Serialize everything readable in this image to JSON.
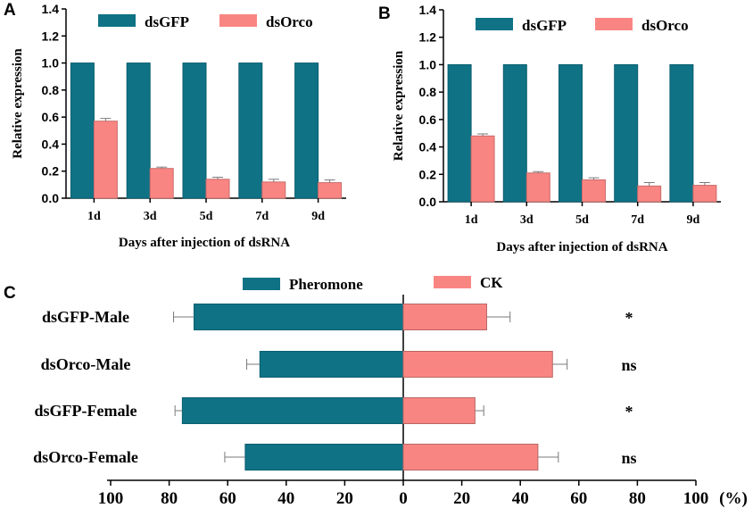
{
  "colors": {
    "teal": "#0f7285",
    "salmon": "#f98583",
    "axis": "#000000",
    "error": "#7a7a7a"
  },
  "chart_data": [
    {
      "panel": "A",
      "type": "bar",
      "categories": [
        "1d",
        "3d",
        "5d",
        "7d",
        "9d"
      ],
      "series": [
        {
          "name": "dsGFP",
          "values": [
            1.0,
            1.0,
            1.0,
            1.0,
            1.0
          ],
          "errors": [
            0,
            0,
            0,
            0,
            0
          ]
        },
        {
          "name": "dsOrco",
          "values": [
            0.57,
            0.22,
            0.14,
            0.12,
            0.115
          ],
          "errors": [
            0.02,
            0.01,
            0.015,
            0.02,
            0.02
          ]
        }
      ],
      "ylabel": "Relative expression",
      "xlabel": "Days after injection of dsRNA",
      "ylim": [
        0,
        1.4
      ],
      "yticks": [
        "0.0",
        "0.2",
        "0.4",
        "0.6",
        "0.8",
        "1.0",
        "1.2",
        "1.4"
      ],
      "legend": "top"
    },
    {
      "panel": "B",
      "type": "bar",
      "categories": [
        "1d",
        "3d",
        "5d",
        "7d",
        "9d"
      ],
      "series": [
        {
          "name": "dsGFP",
          "values": [
            1.0,
            1.0,
            1.0,
            1.0,
            1.0
          ],
          "errors": [
            0,
            0,
            0,
            0,
            0
          ]
        },
        {
          "name": "dsOrco",
          "values": [
            0.48,
            0.21,
            0.16,
            0.115,
            0.12
          ],
          "errors": [
            0.015,
            0.01,
            0.015,
            0.025,
            0.02
          ]
        }
      ],
      "ylabel": "Relative expression",
      "xlabel": "Days after injection of dsRNA",
      "ylim": [
        0,
        1.4
      ],
      "yticks": [
        "0.0",
        "0.2",
        "0.4",
        "0.6",
        "0.8",
        "1.0",
        "1.2",
        "1.4"
      ],
      "legend": "top"
    },
    {
      "panel": "C",
      "type": "bar",
      "orientation": "horizontal-diverging",
      "categories": [
        "dsGFP-Male",
        "dsOrco-Male",
        "dsGFP-Female",
        "dsOrco-Female"
      ],
      "series": [
        {
          "name": "Pheromone",
          "values": [
            71.5,
            49,
            75.5,
            54
          ],
          "errors": [
            7,
            4.5,
            2.5,
            7
          ]
        },
        {
          "name": "CK",
          "values": [
            28.5,
            51,
            24.5,
            46
          ],
          "errors": [
            8,
            5,
            3,
            7
          ]
        }
      ],
      "significance": [
        "*",
        "ns",
        "*",
        "ns"
      ],
      "xticks": [
        "100",
        "80",
        "60",
        "40",
        "20",
        "0",
        "20",
        "40",
        "60",
        "80",
        "100"
      ],
      "xunit": "(%)",
      "xlim": [
        -100,
        100
      ],
      "legend": "top"
    }
  ]
}
